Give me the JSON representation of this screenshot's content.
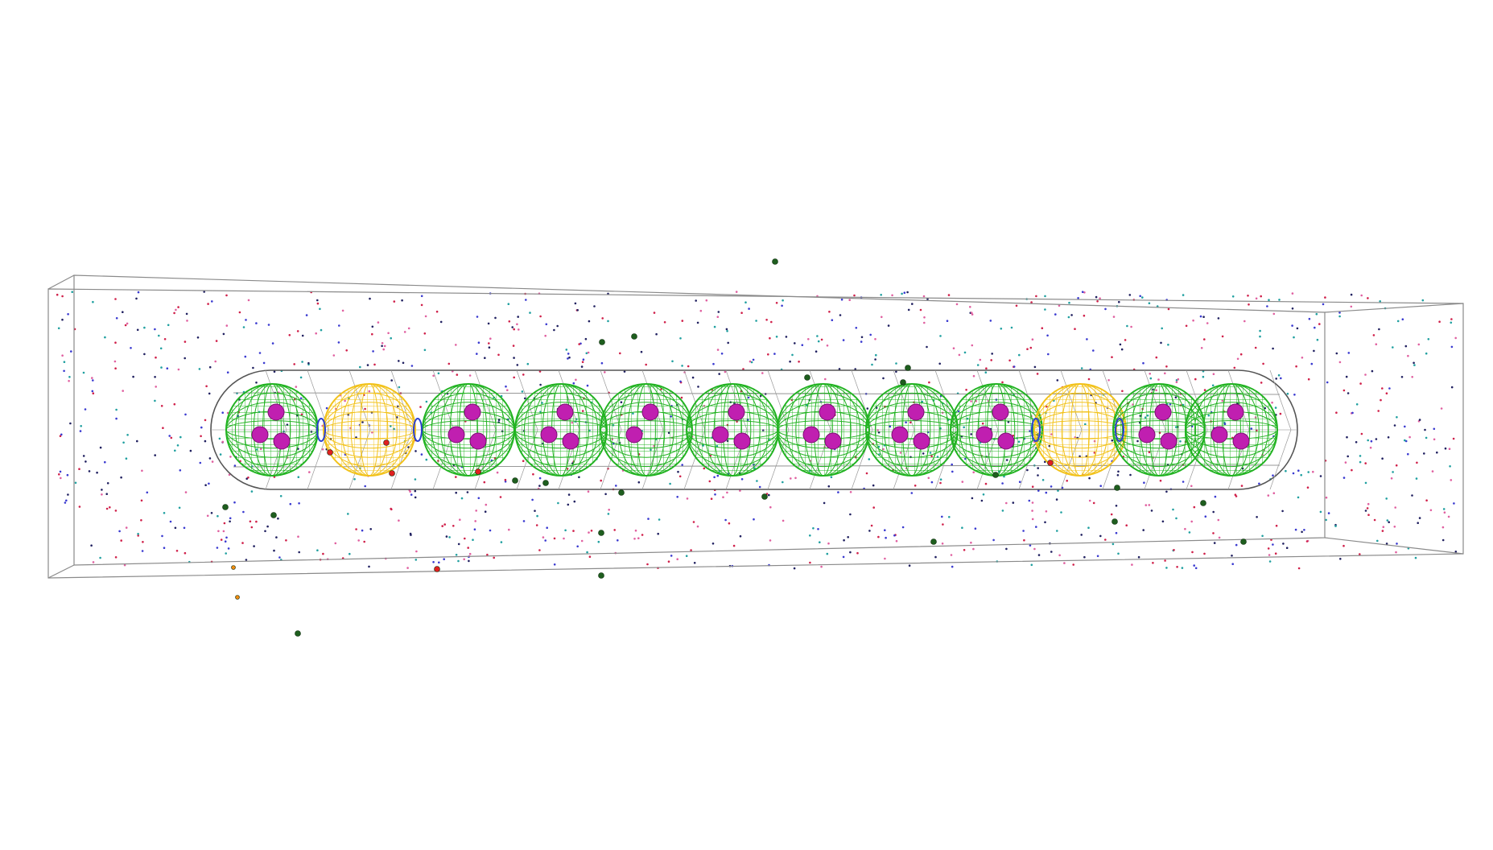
{
  "scene": {
    "description_free": true,
    "colors": {
      "background": "#ffffff",
      "box_edge": "#8a8a8a",
      "capsule_edge": "#555555",
      "sphere_green": "#22b322",
      "sphere_yellow": "#f2c21a",
      "inner_magenta": "#c01fb0",
      "ring_blue": "#2a3fd0",
      "particle_dark_green": "#1e5e1e",
      "particle_red": "#e02020",
      "particle_orange": "#f08a10",
      "dot_palette": [
        "#d0204a",
        "#3a3ad0",
        "#20a0a0",
        "#e060a0",
        "#202060"
      ]
    },
    "spheres": [
      {
        "kind": "green",
        "inner_count": 3
      },
      {
        "kind": "yellow",
        "inner_count": 0
      },
      {
        "kind": "green",
        "inner_count": 3
      },
      {
        "kind": "green",
        "inner_count": 3
      },
      {
        "kind": "green",
        "inner_count": 2
      },
      {
        "kind": "green",
        "inner_count": 3
      },
      {
        "kind": "green",
        "inner_count": 3
      },
      {
        "kind": "green",
        "inner_count": 3
      },
      {
        "kind": "green",
        "inner_count": 3
      },
      {
        "kind": "yellow",
        "inner_count": 0
      },
      {
        "kind": "green",
        "inner_count": 3
      },
      {
        "kind": "green",
        "inner_count": 3
      }
    ],
    "icons": {
      "box": "wireframe-box-icon",
      "capsule": "capsule-container-icon"
    }
  }
}
